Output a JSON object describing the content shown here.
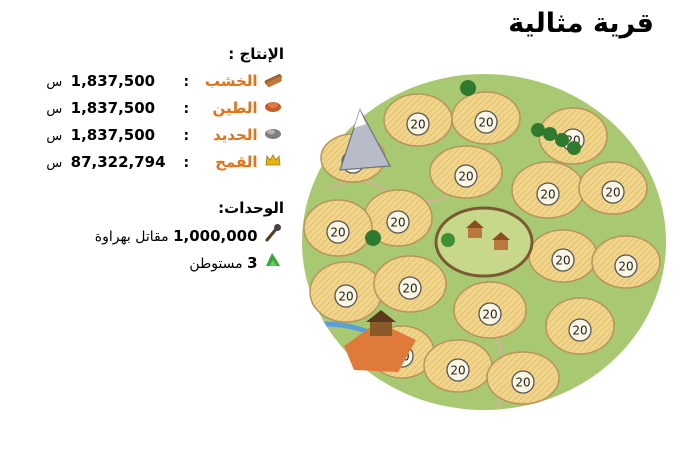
{
  "village": {
    "title": "قرية مثالية"
  },
  "production": {
    "heading": "الإنتاج :",
    "resources": [
      {
        "icon": "wood-icon",
        "name": "الخشب",
        "value": "1,837,500",
        "unit": "س"
      },
      {
        "icon": "clay-icon",
        "name": "الطين",
        "value": "1,837,500",
        "unit": "س"
      },
      {
        "icon": "iron-icon",
        "name": "الحديد",
        "value": "1,837,500",
        "unit": "س"
      },
      {
        "icon": "crop-icon",
        "name": "القمح",
        "value": "87,322,794",
        "unit": "س"
      }
    ]
  },
  "troops": {
    "heading": "الوحدات:",
    "units": [
      {
        "icon": "club-warrior-icon",
        "count": "1,000,000",
        "name": "مقاتل بهراوة"
      },
      {
        "icon": "settler-icon",
        "count": "3",
        "name": "مستوطن"
      }
    ]
  },
  "fields": {
    "levels": [
      "20",
      "20",
      "20",
      "20",
      "20",
      "20",
      "20",
      "20",
      "20",
      "20",
      "20",
      "20",
      "20",
      "20",
      "20",
      "20",
      "20",
      "20"
    ]
  },
  "colors": {
    "resource_label": "#e2721b",
    "field": "#f1d58a",
    "field_edge": "#b8945a",
    "grass": "#a8c972"
  }
}
